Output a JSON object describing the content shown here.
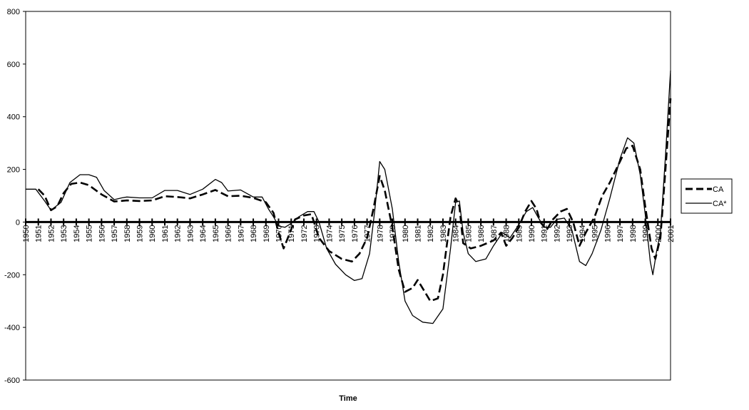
{
  "chart_data": {
    "type": "line",
    "title": "",
    "xlabel": "Time",
    "ylabel": "",
    "ylim": [
      -600,
      800
    ],
    "yticks": [
      800,
      600,
      400,
      200,
      0,
      -200,
      -400,
      -600
    ],
    "grid": false,
    "legend_position": "right",
    "x_categories": [
      "1950",
      "1951",
      "1952",
      "1953",
      "1954",
      "1955",
      "1956",
      "1957",
      "1958",
      "1959",
      "1960",
      "1961",
      "1962",
      "1963",
      "1964",
      "1965",
      "1966",
      "1967",
      "1968",
      "1969",
      "1970",
      "1971",
      "1972",
      "1973",
      "1974",
      "1975",
      "1976",
      "1977",
      "1978",
      "1979",
      "1980",
      "1981",
      "1982",
      "1983",
      "1984",
      "1985",
      "1986",
      "1987",
      "1988",
      "1989",
      "1990",
      "1991",
      "1992",
      "1993",
      "1994",
      "1995",
      "1996",
      "1997",
      "1998",
      "1999",
      "2000",
      "2001"
    ],
    "series": [
      {
        "name": "CA",
        "style": "dashed",
        "points": [
          [
            1951,
            125
          ],
          [
            1951.5,
            100
          ],
          [
            1952,
            45
          ],
          [
            1952.5,
            60
          ],
          [
            1953,
            110
          ],
          [
            1953.6,
            145
          ],
          [
            1954.3,
            150
          ],
          [
            1955,
            140
          ],
          [
            1956,
            105
          ],
          [
            1957,
            78
          ],
          [
            1958,
            82
          ],
          [
            1959,
            80
          ],
          [
            1960,
            82
          ],
          [
            1961,
            98
          ],
          [
            1962,
            95
          ],
          [
            1963,
            90
          ],
          [
            1964,
            105
          ],
          [
            1965,
            122
          ],
          [
            1966,
            98
          ],
          [
            1967,
            100
          ],
          [
            1968,
            92
          ],
          [
            1969,
            75
          ],
          [
            1969.6,
            35
          ],
          [
            1970,
            -40
          ],
          [
            1970.4,
            -100
          ],
          [
            1970.9,
            -40
          ],
          [
            1971.3,
            10
          ],
          [
            1972,
            25
          ],
          [
            1972.6,
            30
          ],
          [
            1973.2,
            -60
          ],
          [
            1974,
            -110
          ],
          [
            1975,
            -140
          ],
          [
            1975.8,
            -150
          ],
          [
            1976.4,
            -120
          ],
          [
            1977,
            -60
          ],
          [
            1977.5,
            50
          ],
          [
            1978,
            175
          ],
          [
            1978.4,
            120
          ],
          [
            1979,
            -20
          ],
          [
            1979.5,
            -180
          ],
          [
            1980,
            -265
          ],
          [
            1980.6,
            -250
          ],
          [
            1981,
            -220
          ],
          [
            1981.5,
            -260
          ],
          [
            1982,
            -300
          ],
          [
            1982.6,
            -290
          ],
          [
            1983,
            -200
          ],
          [
            1983.6,
            20
          ],
          [
            1984,
            90
          ],
          [
            1984.3,
            60
          ],
          [
            1984.6,
            -80
          ],
          [
            1985.2,
            -100
          ],
          [
            1986,
            -90
          ],
          [
            1987,
            -70
          ],
          [
            1987.6,
            -40
          ],
          [
            1988,
            -90
          ],
          [
            1988.5,
            -60
          ],
          [
            1989,
            -20
          ],
          [
            1989.5,
            40
          ],
          [
            1990,
            80
          ],
          [
            1990.4,
            50
          ],
          [
            1990.7,
            0
          ],
          [
            1991.2,
            -30
          ],
          [
            1991.7,
            10
          ],
          [
            1992.3,
            40
          ],
          [
            1992.8,
            50
          ],
          [
            1993.3,
            0
          ],
          [
            1993.8,
            -90
          ],
          [
            1994.3,
            -40
          ],
          [
            1995,
            20
          ],
          [
            1995.6,
            100
          ],
          [
            1996.2,
            150
          ],
          [
            1997,
            230
          ],
          [
            1997.5,
            280
          ],
          [
            1998,
            290
          ],
          [
            1998.6,
            200
          ],
          [
            1999,
            60
          ],
          [
            1999.5,
            -100
          ],
          [
            1999.8,
            -140
          ],
          [
            2000.2,
            -60
          ],
          [
            2000.6,
            200
          ],
          [
            2001,
            470
          ]
        ]
      },
      {
        "name": "CA*",
        "style": "solid",
        "points": [
          [
            1950,
            125
          ],
          [
            1950.8,
            125
          ],
          [
            1951.5,
            80
          ],
          [
            1952,
            45
          ],
          [
            1952.8,
            75
          ],
          [
            1953.5,
            150
          ],
          [
            1954.3,
            180
          ],
          [
            1955,
            180
          ],
          [
            1955.6,
            170
          ],
          [
            1956.2,
            120
          ],
          [
            1957,
            85
          ],
          [
            1957.6,
            92
          ],
          [
            1958,
            95
          ],
          [
            1959,
            92
          ],
          [
            1960,
            92
          ],
          [
            1961,
            120
          ],
          [
            1962,
            120
          ],
          [
            1963,
            105
          ],
          [
            1964,
            125
          ],
          [
            1965,
            162
          ],
          [
            1965.5,
            150
          ],
          [
            1966,
            118
          ],
          [
            1967,
            122
          ],
          [
            1968,
            95
          ],
          [
            1968.7,
            95
          ],
          [
            1969.2,
            50
          ],
          [
            1969.6,
            20
          ],
          [
            1970,
            -15
          ],
          [
            1970.5,
            -20
          ],
          [
            1971,
            -5
          ],
          [
            1971.6,
            20
          ],
          [
            1972.3,
            40
          ],
          [
            1972.8,
            40
          ],
          [
            1973.2,
            0
          ],
          [
            1973.8,
            -100
          ],
          [
            1974.5,
            -160
          ],
          [
            1975.3,
            -200
          ],
          [
            1976,
            -222
          ],
          [
            1976.6,
            -215
          ],
          [
            1977.2,
            -120
          ],
          [
            1977.6,
            40
          ],
          [
            1978,
            230
          ],
          [
            1978.4,
            200
          ],
          [
            1979,
            50
          ],
          [
            1979.5,
            -150
          ],
          [
            1980,
            -300
          ],
          [
            1980.6,
            -355
          ],
          [
            1981.4,
            -380
          ],
          [
            1982.2,
            -385
          ],
          [
            1983,
            -330
          ],
          [
            1983.6,
            -100
          ],
          [
            1984,
            75
          ],
          [
            1984.3,
            80
          ],
          [
            1984.6,
            -40
          ],
          [
            1985,
            -120
          ],
          [
            1985.6,
            -150
          ],
          [
            1986.4,
            -140
          ],
          [
            1987,
            -90
          ],
          [
            1987.7,
            -40
          ],
          [
            1988.3,
            -60
          ],
          [
            1989,
            -10
          ],
          [
            1989.6,
            40
          ],
          [
            1990.1,
            55
          ],
          [
            1990.5,
            20
          ],
          [
            1991,
            -20
          ],
          [
            1991.5,
            -20
          ],
          [
            1992,
            10
          ],
          [
            1992.6,
            15
          ],
          [
            1993.2,
            -30
          ],
          [
            1993.8,
            -150
          ],
          [
            1994.3,
            -165
          ],
          [
            1994.8,
            -120
          ],
          [
            1995.5,
            -30
          ],
          [
            1996.2,
            90
          ],
          [
            1997,
            240
          ],
          [
            1997.6,
            320
          ],
          [
            1998.1,
            300
          ],
          [
            1998.6,
            180
          ],
          [
            1999,
            30
          ],
          [
            1999.4,
            -150
          ],
          [
            1999.6,
            -200
          ],
          [
            1999.9,
            -110
          ],
          [
            2000.2,
            -40
          ],
          [
            2000.6,
            250
          ],
          [
            2001,
            575
          ]
        ]
      }
    ]
  }
}
